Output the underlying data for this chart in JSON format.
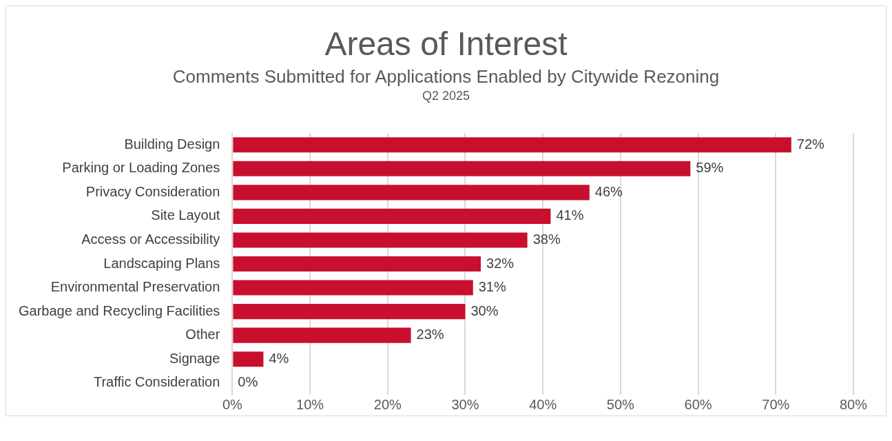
{
  "chart_data": {
    "type": "bar",
    "orientation": "horizontal",
    "title": "Areas of Interest",
    "subtitle": "Comments Submitted for Applications Enabled by Citywide Rezoning",
    "annotations": [
      "Q2 2025"
    ],
    "categories": [
      "Building Design",
      "Parking or Loading Zones",
      "Privacy Consideration",
      "Site Layout",
      "Access or Accessibility",
      "Landscaping Plans",
      "Environmental Preservation",
      "Garbage and Recycling Facilities",
      "Other",
      "Signage",
      "Traffic Consideration"
    ],
    "values": [
      72,
      59,
      46,
      41,
      38,
      32,
      31,
      30,
      23,
      4,
      0
    ],
    "value_labels": [
      "72%",
      "59%",
      "46%",
      "41%",
      "38%",
      "32%",
      "31%",
      "30%",
      "23%",
      "4%",
      "0%"
    ],
    "color": "#c8102e",
    "xlim": [
      0,
      80
    ],
    "xticks": [
      {
        "value": 0,
        "label": "0%"
      },
      {
        "value": 10,
        "label": "10%"
      },
      {
        "value": 20,
        "label": "20%"
      },
      {
        "value": 30,
        "label": "30%"
      },
      {
        "value": 40,
        "label": "40%"
      },
      {
        "value": 50,
        "label": "50%"
      },
      {
        "value": 60,
        "label": "60%"
      },
      {
        "value": 70,
        "label": "70%"
      },
      {
        "value": 80,
        "label": "80%"
      }
    ],
    "grid": "x",
    "legend": false
  }
}
